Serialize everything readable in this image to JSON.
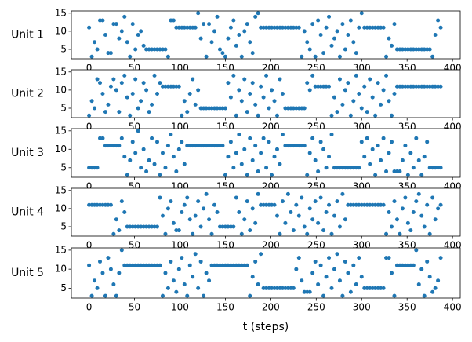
{
  "chart_data": [
    {
      "type": "scatter",
      "ylabel": "Unit 1",
      "color": "#1f77b4",
      "xlim": [
        -19.5,
        408.5
      ],
      "ylim": [
        2.4,
        15.6
      ],
      "xticks": [
        0,
        50,
        100,
        150,
        200,
        250,
        300,
        350,
        400
      ],
      "yticks": [
        5,
        10,
        15
      ],
      "x": [
        0,
        3,
        6,
        9,
        12,
        15,
        18,
        21,
        24,
        27,
        30,
        33,
        36,
        39,
        42,
        45,
        48,
        51,
        54,
        57,
        60,
        63,
        66,
        69,
        72,
        75,
        78,
        81,
        84,
        87,
        90,
        93,
        96,
        99,
        102,
        105,
        108,
        111,
        114,
        117,
        120,
        123,
        126,
        129,
        132,
        135,
        138,
        141,
        144,
        147,
        150,
        153,
        156,
        159,
        162,
        165,
        168,
        171,
        174,
        177,
        180,
        183,
        186,
        189,
        192,
        195,
        198,
        201,
        204,
        207,
        210,
        213,
        216,
        219,
        222,
        225,
        228,
        231,
        234,
        237,
        240,
        243,
        246,
        249,
        252,
        255,
        258,
        261,
        264,
        267,
        270,
        273,
        276,
        279,
        282,
        285,
        288,
        291,
        294,
        297,
        300,
        303,
        306,
        309,
        312,
        315,
        318,
        321,
        324,
        327,
        330,
        333,
        336,
        339,
        342,
        345,
        348,
        351,
        354,
        357,
        360,
        363,
        366,
        369,
        372,
        375,
        378,
        381,
        384,
        387
      ],
      "values": [
        11,
        3,
        7,
        5,
        13,
        13,
        9,
        4,
        4,
        12,
        12,
        8,
        10,
        14,
        7,
        3,
        12,
        5,
        9,
        10,
        6,
        5,
        5,
        5,
        5,
        5,
        5,
        5,
        5,
        3,
        13,
        13,
        11,
        11,
        11,
        11,
        11,
        11,
        11,
        11,
        15,
        8,
        12,
        3,
        12,
        7,
        10,
        14,
        5,
        4,
        3,
        8,
        11,
        13,
        6,
        9,
        3,
        10,
        12,
        7,
        4,
        14,
        15,
        11,
        11,
        11,
        11,
        11,
        11,
        11,
        11,
        11,
        11,
        11,
        11,
        11,
        11,
        11,
        3,
        10,
        7,
        5,
        12,
        3,
        13,
        9,
        4,
        11,
        14,
        6,
        8,
        10,
        3,
        12,
        5,
        9,
        13,
        7,
        4,
        11,
        15,
        11,
        11,
        11,
        11,
        11,
        11,
        11,
        11,
        3,
        8,
        6,
        12,
        5,
        5,
        5,
        5,
        5,
        5,
        5,
        5,
        5,
        5,
        5,
        5,
        5,
        3,
        9,
        13,
        11
      ]
    },
    {
      "type": "scatter",
      "ylabel": "Unit 2",
      "color": "#1f77b4",
      "xlim": [
        -19.5,
        408.5
      ],
      "ylim": [
        2.4,
        15.6
      ],
      "xticks": [
        0,
        50,
        100,
        150,
        200,
        250,
        300,
        350,
        400
      ],
      "yticks": [
        5,
        10,
        15
      ],
      "x": [
        0,
        3,
        6,
        9,
        12,
        15,
        18,
        21,
        24,
        27,
        30,
        33,
        36,
        39,
        42,
        45,
        48,
        51,
        54,
        57,
        60,
        63,
        66,
        69,
        72,
        75,
        78,
        81,
        84,
        87,
        90,
        93,
        96,
        99,
        102,
        105,
        108,
        111,
        114,
        117,
        120,
        123,
        126,
        129,
        132,
        135,
        138,
        141,
        144,
        147,
        150,
        153,
        156,
        159,
        162,
        165,
        168,
        171,
        174,
        177,
        180,
        183,
        186,
        189,
        192,
        195,
        198,
        201,
        204,
        207,
        210,
        213,
        216,
        219,
        222,
        225,
        228,
        231,
        234,
        237,
        240,
        243,
        246,
        249,
        252,
        255,
        258,
        261,
        264,
        267,
        270,
        273,
        276,
        279,
        282,
        285,
        288,
        291,
        294,
        297,
        300,
        303,
        306,
        309,
        312,
        315,
        318,
        321,
        324,
        327,
        330,
        333,
        336,
        339,
        342,
        345,
        348,
        351,
        354,
        357,
        360,
        363,
        366,
        369,
        372,
        375,
        378,
        381,
        384,
        387
      ],
      "values": [
        3,
        7,
        5,
        13,
        12,
        9,
        4,
        6,
        11,
        13,
        10,
        4,
        12,
        14,
        8,
        3,
        9,
        13,
        5,
        7,
        12,
        10,
        4,
        6,
        14,
        9,
        12,
        11,
        11,
        11,
        11,
        11,
        11,
        11,
        3,
        7,
        4,
        9,
        13,
        6,
        10,
        5,
        5,
        5,
        5,
        5,
        5,
        5,
        5,
        5,
        5,
        12,
        8,
        14,
        3,
        10,
        7,
        13,
        4,
        9,
        12,
        6,
        3,
        11,
        8,
        14,
        5,
        10,
        7,
        3,
        13,
        9,
        5,
        5,
        5,
        5,
        5,
        5,
        5,
        5,
        12,
        10,
        14,
        11,
        11,
        11,
        11,
        11,
        11,
        3,
        8,
        4,
        13,
        6,
        10,
        12,
        3,
        7,
        14,
        9,
        5,
        11,
        4,
        13,
        8,
        3,
        12,
        6,
        10,
        14,
        7,
        3,
        9,
        11,
        11,
        11,
        11,
        11,
        11,
        11,
        11,
        11,
        11,
        11,
        11,
        11,
        11,
        11,
        11,
        11
      ]
    },
    {
      "type": "scatter",
      "ylabel": "Unit 3",
      "color": "#1f77b4",
      "xlim": [
        -19.5,
        408.5
      ],
      "ylim": [
        2.4,
        15.6
      ],
      "xticks": [
        0,
        50,
        100,
        150,
        200,
        250,
        300,
        350,
        400
      ],
      "yticks": [
        5,
        10,
        15
      ],
      "x": [
        0,
        3,
        6,
        9,
        12,
        15,
        18,
        21,
        24,
        27,
        30,
        33,
        36,
        39,
        42,
        45,
        48,
        51,
        54,
        57,
        60,
        63,
        66,
        69,
        72,
        75,
        78,
        81,
        84,
        87,
        90,
        93,
        96,
        99,
        102,
        105,
        108,
        111,
        114,
        117,
        120,
        123,
        126,
        129,
        132,
        135,
        138,
        141,
        144,
        147,
        150,
        153,
        156,
        159,
        162,
        165,
        168,
        171,
        174,
        177,
        180,
        183,
        186,
        189,
        192,
        195,
        198,
        201,
        204,
        207,
        210,
        213,
        216,
        219,
        222,
        225,
        228,
        231,
        234,
        237,
        240,
        243,
        246,
        249,
        252,
        255,
        258,
        261,
        264,
        267,
        270,
        273,
        276,
        279,
        282,
        285,
        288,
        291,
        294,
        297,
        300,
        303,
        306,
        309,
        312,
        315,
        318,
        321,
        324,
        327,
        330,
        333,
        336,
        339,
        342,
        345,
        348,
        351,
        354,
        357,
        360,
        363,
        366,
        369,
        372,
        375,
        378,
        381,
        384,
        387
      ],
      "values": [
        5,
        5,
        5,
        5,
        13,
        13,
        11,
        11,
        11,
        11,
        11,
        11,
        13,
        8,
        3,
        7,
        12,
        9,
        15,
        5,
        10,
        4,
        7,
        13,
        6,
        12,
        3,
        9,
        5,
        11,
        14,
        8,
        4,
        10,
        12,
        6,
        11,
        11,
        11,
        11,
        11,
        11,
        11,
        11,
        11,
        11,
        11,
        11,
        11,
        11,
        3,
        8,
        12,
        5,
        9,
        14,
        6,
        10,
        3,
        13,
        7,
        11,
        4,
        9,
        13,
        5,
        12,
        3,
        8,
        10,
        6,
        14,
        11,
        11,
        11,
        11,
        11,
        11,
        11,
        11,
        3,
        9,
        13,
        7,
        4,
        12,
        10,
        5,
        8,
        14,
        5,
        5,
        5,
        5,
        5,
        5,
        5,
        5,
        5,
        5,
        12,
        8,
        13,
        6,
        10,
        3,
        11,
        7,
        13,
        4,
        9,
        12,
        4,
        4,
        4,
        7,
        11,
        3,
        9,
        5,
        13,
        7,
        3,
        8,
        12,
        5,
        5,
        5,
        5,
        5
      ]
    },
    {
      "type": "scatter",
      "ylabel": "Unit 4",
      "color": "#1f77b4",
      "xlim": [
        -19.5,
        408.5
      ],
      "ylim": [
        2.4,
        15.6
      ],
      "xticks": [
        0,
        50,
        100,
        150,
        200,
        250,
        300,
        350,
        400
      ],
      "yticks": [
        5,
        10,
        15
      ],
      "x": [
        0,
        3,
        6,
        9,
        12,
        15,
        18,
        21,
        24,
        27,
        30,
        33,
        36,
        39,
        42,
        45,
        48,
        51,
        54,
        57,
        60,
        63,
        66,
        69,
        72,
        75,
        78,
        81,
        84,
        87,
        90,
        93,
        96,
        99,
        102,
        105,
        108,
        111,
        114,
        117,
        120,
        123,
        126,
        129,
        132,
        135,
        138,
        141,
        144,
        147,
        150,
        153,
        156,
        159,
        162,
        165,
        168,
        171,
        174,
        177,
        180,
        183,
        186,
        189,
        192,
        195,
        198,
        201,
        204,
        207,
        210,
        213,
        216,
        219,
        222,
        225,
        228,
        231,
        234,
        237,
        240,
        243,
        246,
        249,
        252,
        255,
        258,
        261,
        264,
        267,
        270,
        273,
        276,
        279,
        282,
        285,
        288,
        291,
        294,
        297,
        300,
        303,
        306,
        309,
        312,
        315,
        318,
        321,
        324,
        327,
        330,
        333,
        336,
        339,
        342,
        345,
        348,
        351,
        354,
        357,
        360,
        363,
        366,
        369,
        372,
        375,
        378,
        381,
        384,
        387
      ],
      "values": [
        11,
        11,
        11,
        11,
        11,
        11,
        11,
        11,
        11,
        3,
        7,
        4,
        12,
        9,
        5,
        5,
        5,
        5,
        5,
        5,
        5,
        5,
        5,
        5,
        5,
        5,
        13,
        8,
        3,
        10,
        12,
        6,
        4,
        4,
        9,
        11,
        13,
        7,
        3,
        8,
        12,
        5,
        10,
        14,
        7,
        3,
        11,
        9,
        5,
        5,
        5,
        5,
        5,
        5,
        13,
        9,
        3,
        7,
        12,
        4,
        10,
        6,
        14,
        11,
        11,
        11,
        11,
        11,
        11,
        8,
        3,
        12,
        6,
        14,
        9,
        4,
        11,
        8,
        13,
        5,
        3,
        10,
        7,
        12,
        6,
        13,
        4,
        9,
        11,
        3,
        8,
        12,
        5,
        14,
        7,
        11,
        11,
        11,
        11,
        11,
        11,
        11,
        11,
        11,
        11,
        11,
        11,
        11,
        11,
        3,
        9,
        5,
        12,
        7,
        3,
        10,
        13,
        6,
        4,
        9,
        12,
        14,
        8,
        5,
        11,
        3,
        13,
        7,
        10,
        11
      ]
    },
    {
      "type": "scatter",
      "ylabel": "Unit 5",
      "xlabel": "t (steps)",
      "color": "#1f77b4",
      "xlim": [
        -19.5,
        408.5
      ],
      "ylim": [
        2.4,
        15.6
      ],
      "xticks": [
        0,
        50,
        100,
        150,
        200,
        250,
        300,
        350,
        400
      ],
      "yticks": [
        5,
        10,
        15
      ],
      "x": [
        0,
        3,
        6,
        9,
        12,
        15,
        18,
        21,
        24,
        27,
        30,
        33,
        36,
        39,
        42,
        45,
        48,
        51,
        54,
        57,
        60,
        63,
        66,
        69,
        72,
        75,
        78,
        81,
        84,
        87,
        90,
        93,
        96,
        99,
        102,
        105,
        108,
        111,
        114,
        117,
        120,
        123,
        126,
        129,
        132,
        135,
        138,
        141,
        144,
        147,
        150,
        153,
        156,
        159,
        162,
        165,
        168,
        171,
        174,
        177,
        180,
        183,
        186,
        189,
        192,
        195,
        198,
        201,
        204,
        207,
        210,
        213,
        216,
        219,
        222,
        225,
        228,
        231,
        234,
        237,
        240,
        243,
        246,
        249,
        252,
        255,
        258,
        261,
        264,
        267,
        270,
        273,
        276,
        279,
        282,
        285,
        288,
        291,
        294,
        297,
        300,
        303,
        306,
        309,
        312,
        315,
        318,
        321,
        324,
        327,
        330,
        333,
        336,
        339,
        342,
        345,
        348,
        351,
        354,
        357,
        360,
        363,
        366,
        369,
        372,
        375,
        378,
        381,
        384,
        387
      ],
      "values": [
        11,
        3,
        7,
        5,
        12,
        9,
        3,
        13,
        10,
        6,
        3,
        9,
        15,
        11,
        11,
        11,
        11,
        11,
        11,
        11,
        11,
        11,
        11,
        11,
        11,
        11,
        11,
        3,
        9,
        5,
        12,
        7,
        4,
        10,
        13,
        6,
        3,
        11,
        8,
        14,
        5,
        12,
        3,
        9,
        7,
        11,
        11,
        11,
        11,
        11,
        11,
        11,
        11,
        11,
        11,
        11,
        11,
        11,
        11,
        3,
        8,
        12,
        6,
        14,
        5,
        5,
        5,
        5,
        5,
        5,
        5,
        5,
        5,
        5,
        5,
        5,
        10,
        13,
        7,
        4,
        4,
        4,
        9,
        12,
        6,
        11,
        3,
        8,
        13,
        5,
        10,
        14,
        7,
        3,
        12,
        9,
        4,
        11,
        6,
        13,
        8,
        5,
        5,
        5,
        5,
        5,
        5,
        5,
        5,
        13,
        13,
        9,
        3,
        11,
        11,
        11,
        11,
        11,
        11,
        11,
        15,
        6,
        10,
        3,
        12,
        8,
        4,
        5,
        7,
        13
      ]
    }
  ]
}
